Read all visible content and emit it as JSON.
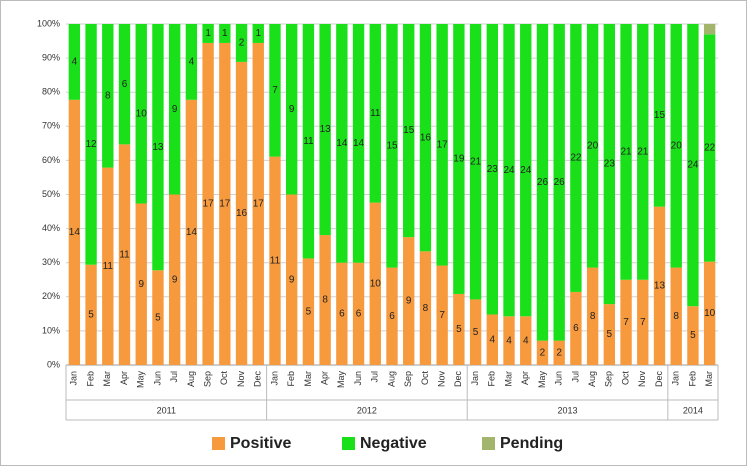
{
  "chart_data": {
    "type": "bar",
    "stacking": "percent",
    "groups": [
      {
        "name": "2011",
        "categories": [
          "Jan",
          "Feb",
          "Mar",
          "Apr",
          "May",
          "Jun",
          "Jul",
          "Aug",
          "Sep",
          "Oct",
          "Nov",
          "Dec"
        ]
      },
      {
        "name": "2012",
        "categories": [
          "Jan",
          "Feb",
          "Mar",
          "Apr",
          "May",
          "Jun",
          "Jul",
          "Aug",
          "Sep",
          "Oct",
          "Nov",
          "Dec"
        ]
      },
      {
        "name": "2013",
        "categories": [
          "Jan",
          "Feb",
          "Mar",
          "Apr",
          "May",
          "Jun",
          "Jul",
          "Aug",
          "Sep",
          "Oct",
          "Nov",
          "Dec"
        ]
      },
      {
        "name": "2014",
        "categories": [
          "Jan",
          "Feb",
          "Mar"
        ]
      }
    ],
    "series": [
      {
        "name": "Positive",
        "color": "#f79a3e",
        "labels": true,
        "values": [
          14,
          5,
          11,
          11,
          9,
          5,
          9,
          14,
          17,
          17,
          16,
          17,
          11,
          9,
          5,
          8,
          6,
          6,
          10,
          6,
          9,
          8,
          7,
          5,
          5,
          4,
          4,
          4,
          2,
          2,
          6,
          8,
          5,
          7,
          7,
          13,
          8,
          5,
          10
        ]
      },
      {
        "name": "Negative",
        "color": "#19e019",
        "labels": true,
        "values": [
          4,
          12,
          8,
          6,
          10,
          13,
          9,
          4,
          1,
          1,
          2,
          1,
          7,
          9,
          11,
          13,
          14,
          14,
          11,
          15,
          15,
          16,
          17,
          19,
          21,
          23,
          24,
          24,
          26,
          26,
          22,
          20,
          23,
          21,
          21,
          15,
          20,
          24,
          22
        ]
      },
      {
        "name": "Pending",
        "color": "#a3b56c",
        "labels": false,
        "values": [
          0,
          0,
          0,
          0,
          0,
          0,
          0,
          0,
          0,
          0,
          0,
          0,
          0,
          0,
          0,
          0,
          0,
          0,
          0,
          0,
          0,
          0,
          0,
          0,
          0,
          0,
          0,
          0,
          0,
          0,
          0,
          0,
          0,
          0,
          0,
          0,
          0,
          0,
          1
        ]
      }
    ],
    "ylim": [
      0,
      100
    ],
    "yticks": [
      {
        "value": 0,
        "label": "0%"
      },
      {
        "value": 10,
        "label": "10%"
      },
      {
        "value": 20,
        "label": "20%"
      },
      {
        "value": 30,
        "label": "30%"
      },
      {
        "value": 40,
        "label": "40%"
      },
      {
        "value": 50,
        "label": "50%"
      },
      {
        "value": 60,
        "label": "60%"
      },
      {
        "value": 70,
        "label": "70%"
      },
      {
        "value": 80,
        "label": "80%"
      },
      {
        "value": 90,
        "label": "90%"
      },
      {
        "value": 100,
        "label": "100%"
      }
    ],
    "grid": true,
    "legend": "bottom"
  }
}
